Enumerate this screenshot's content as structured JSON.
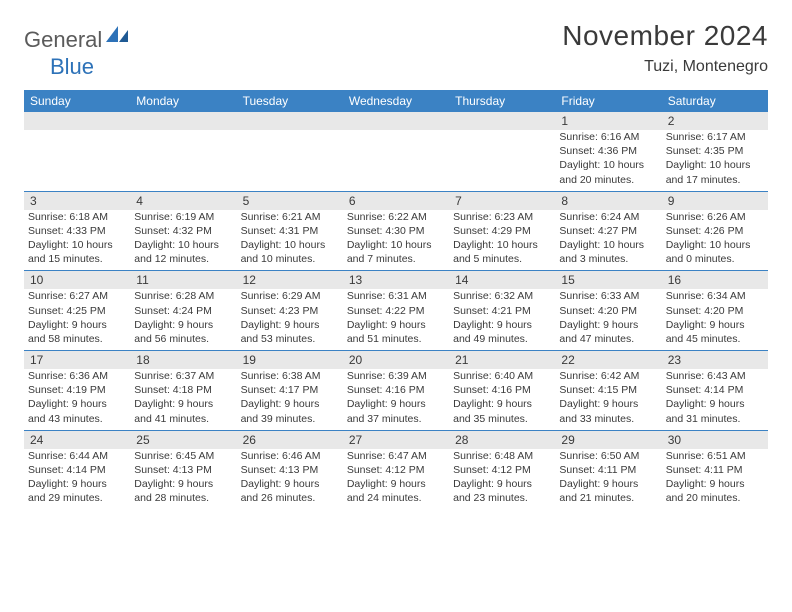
{
  "logo": {
    "text1": "General",
    "text2": "Blue"
  },
  "title": "November 2024",
  "location": "Tuzi, Montenegro",
  "colors": {
    "header_bg": "#3b82c4",
    "header_text": "#ffffff",
    "daynum_bg": "#e8e8e8",
    "border": "#3b82c4",
    "text": "#3a3a3a",
    "logo_gray": "#5b5b5b",
    "logo_blue": "#2d72b8"
  },
  "day_headers": [
    "Sunday",
    "Monday",
    "Tuesday",
    "Wednesday",
    "Thursday",
    "Friday",
    "Saturday"
  ],
  "weeks": [
    [
      null,
      null,
      null,
      null,
      null,
      {
        "n": "1",
        "sr": "Sunrise: 6:16 AM",
        "ss": "Sunset: 4:36 PM",
        "d1": "Daylight: 10 hours",
        "d2": "and 20 minutes."
      },
      {
        "n": "2",
        "sr": "Sunrise: 6:17 AM",
        "ss": "Sunset: 4:35 PM",
        "d1": "Daylight: 10 hours",
        "d2": "and 17 minutes."
      }
    ],
    [
      {
        "n": "3",
        "sr": "Sunrise: 6:18 AM",
        "ss": "Sunset: 4:33 PM",
        "d1": "Daylight: 10 hours",
        "d2": "and 15 minutes."
      },
      {
        "n": "4",
        "sr": "Sunrise: 6:19 AM",
        "ss": "Sunset: 4:32 PM",
        "d1": "Daylight: 10 hours",
        "d2": "and 12 minutes."
      },
      {
        "n": "5",
        "sr": "Sunrise: 6:21 AM",
        "ss": "Sunset: 4:31 PM",
        "d1": "Daylight: 10 hours",
        "d2": "and 10 minutes."
      },
      {
        "n": "6",
        "sr": "Sunrise: 6:22 AM",
        "ss": "Sunset: 4:30 PM",
        "d1": "Daylight: 10 hours",
        "d2": "and 7 minutes."
      },
      {
        "n": "7",
        "sr": "Sunrise: 6:23 AM",
        "ss": "Sunset: 4:29 PM",
        "d1": "Daylight: 10 hours",
        "d2": "and 5 minutes."
      },
      {
        "n": "8",
        "sr": "Sunrise: 6:24 AM",
        "ss": "Sunset: 4:27 PM",
        "d1": "Daylight: 10 hours",
        "d2": "and 3 minutes."
      },
      {
        "n": "9",
        "sr": "Sunrise: 6:26 AM",
        "ss": "Sunset: 4:26 PM",
        "d1": "Daylight: 10 hours",
        "d2": "and 0 minutes."
      }
    ],
    [
      {
        "n": "10",
        "sr": "Sunrise: 6:27 AM",
        "ss": "Sunset: 4:25 PM",
        "d1": "Daylight: 9 hours",
        "d2": "and 58 minutes."
      },
      {
        "n": "11",
        "sr": "Sunrise: 6:28 AM",
        "ss": "Sunset: 4:24 PM",
        "d1": "Daylight: 9 hours",
        "d2": "and 56 minutes."
      },
      {
        "n": "12",
        "sr": "Sunrise: 6:29 AM",
        "ss": "Sunset: 4:23 PM",
        "d1": "Daylight: 9 hours",
        "d2": "and 53 minutes."
      },
      {
        "n": "13",
        "sr": "Sunrise: 6:31 AM",
        "ss": "Sunset: 4:22 PM",
        "d1": "Daylight: 9 hours",
        "d2": "and 51 minutes."
      },
      {
        "n": "14",
        "sr": "Sunrise: 6:32 AM",
        "ss": "Sunset: 4:21 PM",
        "d1": "Daylight: 9 hours",
        "d2": "and 49 minutes."
      },
      {
        "n": "15",
        "sr": "Sunrise: 6:33 AM",
        "ss": "Sunset: 4:20 PM",
        "d1": "Daylight: 9 hours",
        "d2": "and 47 minutes."
      },
      {
        "n": "16",
        "sr": "Sunrise: 6:34 AM",
        "ss": "Sunset: 4:20 PM",
        "d1": "Daylight: 9 hours",
        "d2": "and 45 minutes."
      }
    ],
    [
      {
        "n": "17",
        "sr": "Sunrise: 6:36 AM",
        "ss": "Sunset: 4:19 PM",
        "d1": "Daylight: 9 hours",
        "d2": "and 43 minutes."
      },
      {
        "n": "18",
        "sr": "Sunrise: 6:37 AM",
        "ss": "Sunset: 4:18 PM",
        "d1": "Daylight: 9 hours",
        "d2": "and 41 minutes."
      },
      {
        "n": "19",
        "sr": "Sunrise: 6:38 AM",
        "ss": "Sunset: 4:17 PM",
        "d1": "Daylight: 9 hours",
        "d2": "and 39 minutes."
      },
      {
        "n": "20",
        "sr": "Sunrise: 6:39 AM",
        "ss": "Sunset: 4:16 PM",
        "d1": "Daylight: 9 hours",
        "d2": "and 37 minutes."
      },
      {
        "n": "21",
        "sr": "Sunrise: 6:40 AM",
        "ss": "Sunset: 4:16 PM",
        "d1": "Daylight: 9 hours",
        "d2": "and 35 minutes."
      },
      {
        "n": "22",
        "sr": "Sunrise: 6:42 AM",
        "ss": "Sunset: 4:15 PM",
        "d1": "Daylight: 9 hours",
        "d2": "and 33 minutes."
      },
      {
        "n": "23",
        "sr": "Sunrise: 6:43 AM",
        "ss": "Sunset: 4:14 PM",
        "d1": "Daylight: 9 hours",
        "d2": "and 31 minutes."
      }
    ],
    [
      {
        "n": "24",
        "sr": "Sunrise: 6:44 AM",
        "ss": "Sunset: 4:14 PM",
        "d1": "Daylight: 9 hours",
        "d2": "and 29 minutes."
      },
      {
        "n": "25",
        "sr": "Sunrise: 6:45 AM",
        "ss": "Sunset: 4:13 PM",
        "d1": "Daylight: 9 hours",
        "d2": "and 28 minutes."
      },
      {
        "n": "26",
        "sr": "Sunrise: 6:46 AM",
        "ss": "Sunset: 4:13 PM",
        "d1": "Daylight: 9 hours",
        "d2": "and 26 minutes."
      },
      {
        "n": "27",
        "sr": "Sunrise: 6:47 AM",
        "ss": "Sunset: 4:12 PM",
        "d1": "Daylight: 9 hours",
        "d2": "and 24 minutes."
      },
      {
        "n": "28",
        "sr": "Sunrise: 6:48 AM",
        "ss": "Sunset: 4:12 PM",
        "d1": "Daylight: 9 hours",
        "d2": "and 23 minutes."
      },
      {
        "n": "29",
        "sr": "Sunrise: 6:50 AM",
        "ss": "Sunset: 4:11 PM",
        "d1": "Daylight: 9 hours",
        "d2": "and 21 minutes."
      },
      {
        "n": "30",
        "sr": "Sunrise: 6:51 AM",
        "ss": "Sunset: 4:11 PM",
        "d1": "Daylight: 9 hours",
        "d2": "and 20 minutes."
      }
    ]
  ]
}
